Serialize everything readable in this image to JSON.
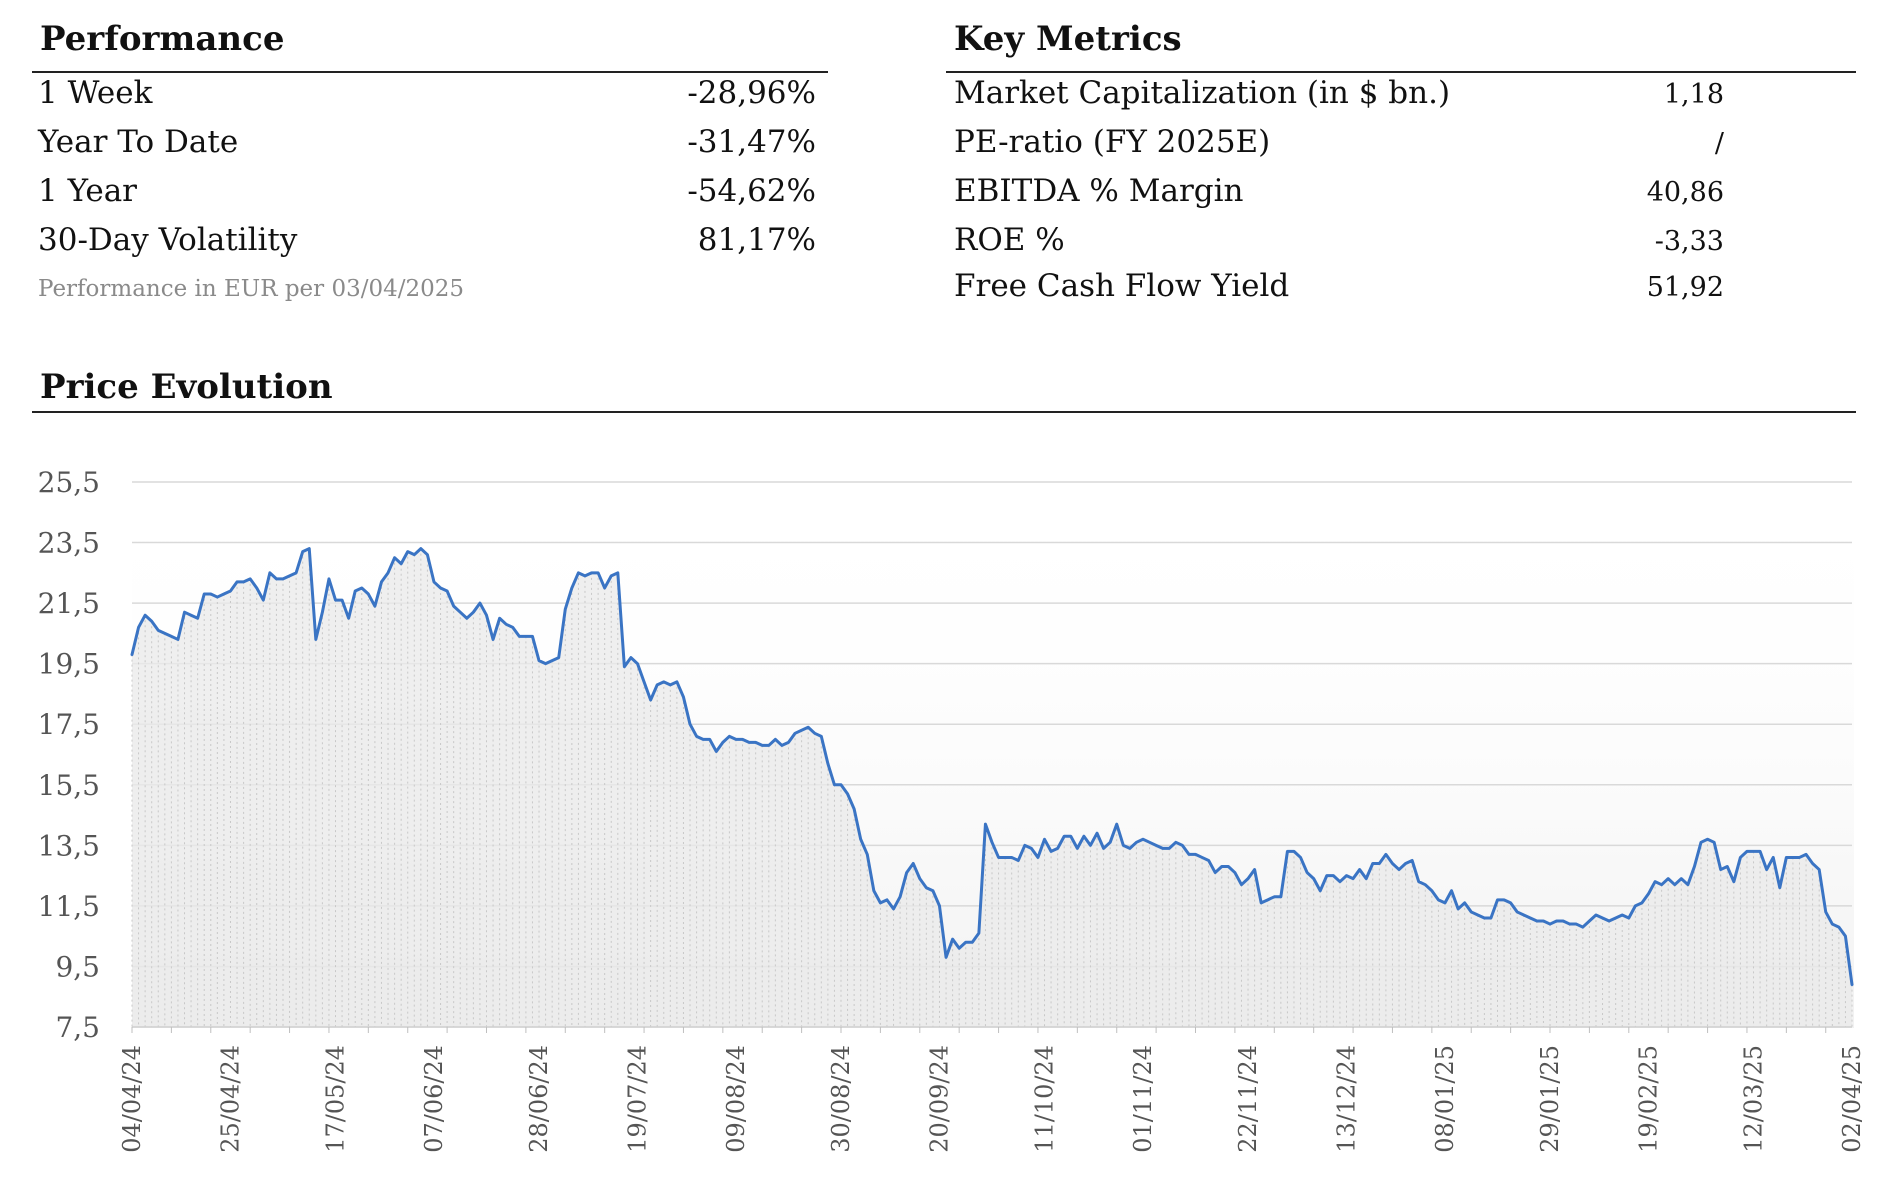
{
  "performance": {
    "title": "Performance",
    "rows": [
      {
        "label": "1 Week",
        "value": "-28,96%"
      },
      {
        "label": "Year To Date",
        "value": "-31,47%"
      },
      {
        "label": "1 Year",
        "value": "-54,62%"
      },
      {
        "label": "30-Day Volatility",
        "value": "81,17%"
      }
    ],
    "note": "Performance in EUR per 03/04/2025"
  },
  "key_metrics": {
    "title": "Key Metrics",
    "rows": [
      {
        "label": "Market Capitalization (in $ bn.)",
        "value": "1,18"
      },
      {
        "label": "PE-ratio (FY 2025E)",
        "value": "/"
      },
      {
        "label": "EBITDA % Margin",
        "value": "40,86"
      },
      {
        "label": "ROE %",
        "value": "-3,33"
      },
      {
        "label": "Free Cash Flow Yield",
        "value": "51,92"
      }
    ]
  },
  "price_evolution": {
    "title": "Price Evolution"
  },
  "chart_data": {
    "type": "area",
    "title": "",
    "xlabel": "",
    "ylabel": "",
    "ylim": [
      7.5,
      25.5
    ],
    "y_ticks": [
      "25,5",
      "23,5",
      "21,5",
      "19,5",
      "17,5",
      "15,5",
      "13,5",
      "11,5",
      "9,5",
      "7,5"
    ],
    "x_tick_labels": [
      "04/04/24",
      "25/04/24",
      "17/05/24",
      "07/06/24",
      "28/06/24",
      "19/07/24",
      "09/08/24",
      "30/08/24",
      "20/09/24",
      "11/10/24",
      "01/11/24",
      "22/11/24",
      "13/12/24",
      "08/01/25",
      "29/01/25",
      "19/02/25",
      "12/03/25",
      "02/04/25"
    ],
    "grid": true,
    "line_color": "#3a74c4",
    "fill_color": "#e9e9e9",
    "series": [
      {
        "values": [
          19.8,
          20.7,
          21.1,
          20.9,
          20.6,
          20.5,
          20.4,
          20.3,
          21.2,
          21.1,
          21.0,
          21.8,
          21.8,
          21.7,
          21.8,
          21.9,
          22.2,
          22.2,
          22.3,
          22.0,
          21.6,
          22.5,
          22.3,
          22.3,
          22.4,
          22.5,
          23.2,
          23.3,
          20.3,
          21.2,
          22.3,
          21.6,
          21.6,
          21.0,
          21.9,
          22.0,
          21.8,
          21.4,
          22.2,
          22.5,
          23.0,
          22.8,
          23.2,
          23.1,
          23.3,
          23.1,
          22.2,
          22.0,
          21.9,
          21.4,
          21.2,
          21.0,
          21.2,
          21.5,
          21.1,
          20.3,
          21.0,
          20.8,
          20.7,
          20.4,
          20.4,
          20.4,
          19.6,
          19.5,
          19.6,
          19.7,
          21.3,
          22.0,
          22.5,
          22.4,
          22.5,
          22.5,
          22.0,
          22.4,
          22.5,
          19.4,
          19.7,
          19.5,
          18.9,
          18.3,
          18.8,
          18.9,
          18.8,
          18.9,
          18.4,
          17.5,
          17.1,
          17.0,
          17.0,
          16.6,
          16.9,
          17.1,
          17.0,
          17.0,
          16.9,
          16.9,
          16.8,
          16.8,
          17.0,
          16.8,
          16.9,
          17.2,
          17.3,
          17.4,
          17.2,
          17.1,
          16.2,
          15.5,
          15.5,
          15.2,
          14.7,
          13.7,
          13.2,
          12.0,
          11.6,
          11.7,
          11.4,
          11.8,
          12.6,
          12.9,
          12.4,
          12.1,
          12.0,
          11.5,
          9.8,
          10.4,
          10.1,
          10.3,
          10.3,
          10.6,
          14.2,
          13.6,
          13.1,
          13.1,
          13.1,
          13.0,
          13.5,
          13.4,
          13.1,
          13.7,
          13.3,
          13.4,
          13.8,
          13.8,
          13.4,
          13.8,
          13.5,
          13.9,
          13.4,
          13.6,
          14.2,
          13.5,
          13.4,
          13.6,
          13.7,
          13.6,
          13.5,
          13.4,
          13.4,
          13.6,
          13.5,
          13.2,
          13.2,
          13.1,
          13.0,
          12.6,
          12.8,
          12.8,
          12.6,
          12.2,
          12.4,
          12.7,
          11.6,
          11.7,
          11.8,
          11.8,
          13.3,
          13.3,
          13.1,
          12.6,
          12.4,
          12.0,
          12.5,
          12.5,
          12.3,
          12.5,
          12.4,
          12.7,
          12.4,
          12.9,
          12.9,
          13.2,
          12.9,
          12.7,
          12.9,
          13.0,
          12.3,
          12.2,
          12.0,
          11.7,
          11.6,
          12.0,
          11.4,
          11.6,
          11.3,
          11.2,
          11.1,
          11.1,
          11.7,
          11.7,
          11.6,
          11.3,
          11.2,
          11.1,
          11.0,
          11.0,
          10.9,
          11.0,
          11.0,
          10.9,
          10.9,
          10.8,
          11.0,
          11.2,
          11.1,
          11.0,
          11.1,
          11.2,
          11.1,
          11.5,
          11.6,
          11.9,
          12.3,
          12.2,
          12.4,
          12.2,
          12.4,
          12.2,
          12.8,
          13.6,
          13.7,
          13.6,
          12.7,
          12.8,
          12.3,
          13.1,
          13.3,
          13.3,
          13.3,
          12.7,
          13.1,
          12.1,
          13.1,
          13.1,
          13.1,
          13.2,
          12.9,
          12.7,
          11.3,
          10.9,
          10.8,
          10.5,
          8.9
        ]
      }
    ]
  }
}
